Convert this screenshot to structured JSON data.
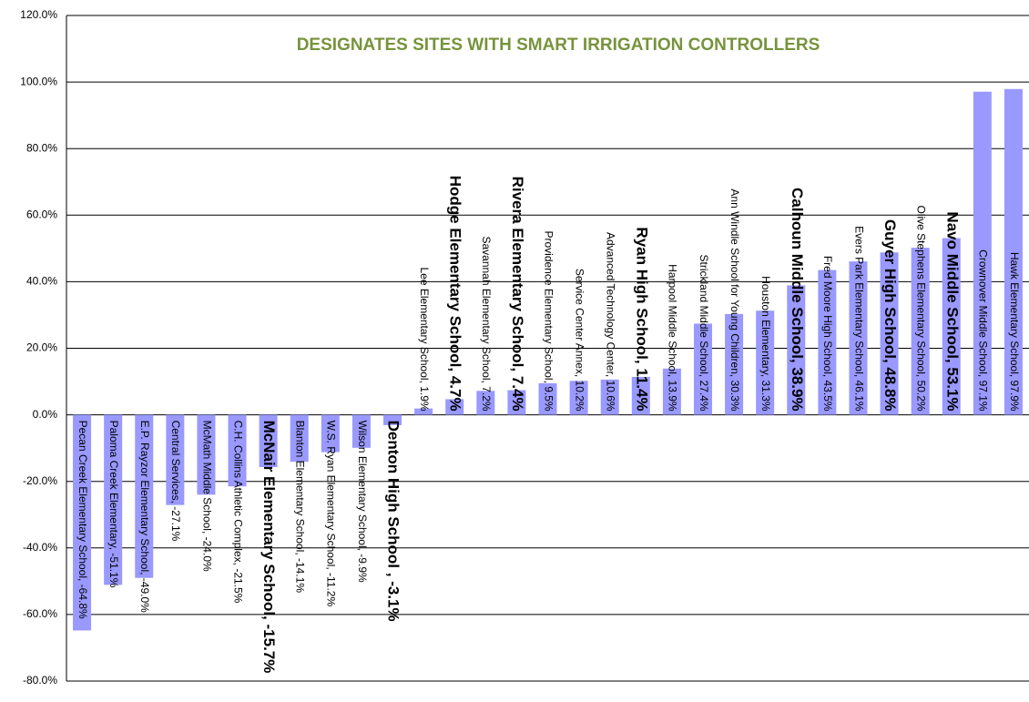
{
  "chart_data": {
    "type": "bar",
    "title": "DESIGNATES SITES WITH SMART IRRIGATION CONTROLLERS",
    "values": [
      -64.8,
      -51.1,
      -49.0,
      -27.1,
      -24.0,
      -21.5,
      -15.7,
      -14.1,
      -11.2,
      -9.9,
      -3.1,
      1.9,
      4.7,
      7.2,
      7.4,
      9.5,
      10.2,
      10.6,
      11.4,
      13.9,
      27.4,
      30.3,
      31.3,
      38.9,
      43.5,
      46.1,
      48.8,
      50.2,
      53.1,
      97.1,
      97.9
    ],
    "value_labels": [
      "Pecan Creek Elementary School, -64.8%",
      "Paloma Creek Elementary, -51.1%",
      "E.P. Rayzor Elementary School, -49.0%",
      "Central Services, -27.1%",
      "McMath Middle School, -24.0%",
      "C.H. Collins Athletic Complex, -21.5%",
      "McNair Elementary School, -15.7%",
      "Blanton Elementary School, -14.1%",
      "W.S. Ryan Elementary School, -11.2%",
      "Wilson Elementary School, -9.9%",
      "Denton High School , -3.1%",
      "Lee Elementary School, 1.9%",
      "Hodge Elementary School, 4.7%",
      "Savannah Elementary School, 7.2%",
      "Rivera Elementary School, 7.4%",
      "Providence Elementary School, 9.5%",
      "Service Center Annex, 10.2%",
      "Advanced Technology Center, 10.6%",
      "Ryan High School, 11.4%",
      "Harpool Middle School, 13.9%",
      "Strickland Middle School, 27.4%",
      "Ann Windle School for Young Children, 30.3%",
      "Houston Elementary, 31.3%",
      "Calhoun Middle School, 38.9%",
      "Fred Moore High School, 43.5%",
      "Evers Park Elementary School, 46.1%",
      "Guyer High School, 48.8%",
      "Olive Stephens Elementary School, 50.2%",
      "Navo Middle School, 53.1%",
      "Crownover Middle School, 97.1%",
      "Hawk Elementary School, 97.9%"
    ],
    "highlighted": [
      false,
      false,
      false,
      false,
      false,
      false,
      true,
      false,
      false,
      false,
      true,
      false,
      true,
      false,
      true,
      false,
      false,
      false,
      true,
      false,
      false,
      false,
      false,
      true,
      false,
      false,
      true,
      false,
      true,
      false,
      false
    ],
    "color": "#9999ff",
    "label_color": "#000000",
    "highlight_color": "#77933c",
    "ylim": [
      -80,
      120
    ],
    "yticks": [
      {
        "value": -80,
        "label": "-80.0%"
      },
      {
        "value": -60,
        "label": "-60.0%"
      },
      {
        "value": -40,
        "label": "-40.0%"
      },
      {
        "value": -20,
        "label": "-20.0%"
      },
      {
        "value": 0,
        "label": "0.0%"
      },
      {
        "value": 20,
        "label": "20.0%"
      },
      {
        "value": 40,
        "label": "40.0%"
      },
      {
        "value": 60,
        "label": "60.0%"
      },
      {
        "value": 80,
        "label": "80.0%"
      },
      {
        "value": 100,
        "label": "100.0%"
      },
      {
        "value": 120,
        "label": "120.0%"
      }
    ],
    "grid": true
  }
}
